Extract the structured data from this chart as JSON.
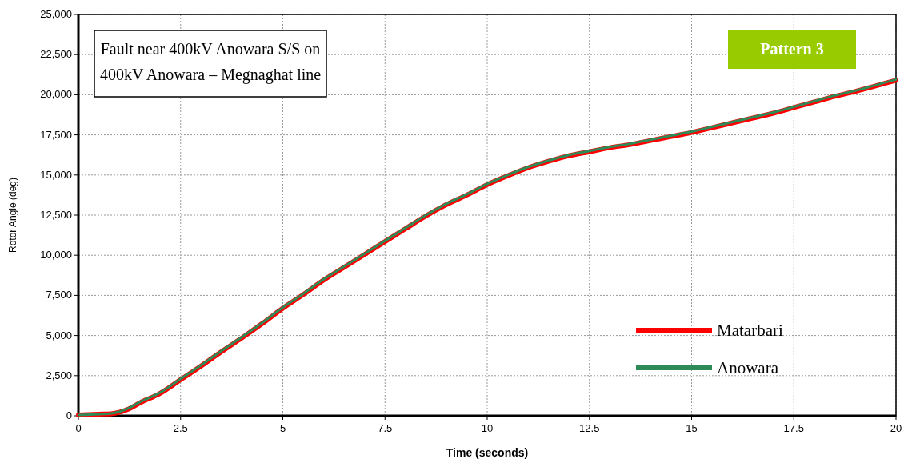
{
  "chart_data": {
    "type": "line",
    "xlabel": "Time (seconds)",
    "ylabel": "Rotor Angle (deg)",
    "annotations": [
      "Fault near 400kV Anowara S/S on 400kV Anowara – Megnaghat line",
      "Pattern 3"
    ],
    "x": [
      0,
      0.5,
      0.8,
      1,
      1.25,
      1.5,
      2,
      2.5,
      3,
      3.5,
      4,
      4.5,
      5,
      5.5,
      6,
      6.5,
      7,
      7.5,
      8,
      8.5,
      9,
      9.5,
      10,
      10.5,
      11,
      11.5,
      12,
      12.5,
      13,
      13.5,
      14,
      14.5,
      15,
      15.5,
      16,
      16.5,
      17,
      17.5,
      18,
      18.5,
      19,
      19.5,
      20
    ],
    "series": [
      {
        "name": "Matarbari",
        "color": "#ff0000",
        "values": [
          50,
          100,
          130,
          220,
          450,
          800,
          1400,
          2250,
          3100,
          4000,
          4850,
          5750,
          6700,
          7550,
          8450,
          9250,
          10050,
          10850,
          11650,
          12450,
          13150,
          13750,
          14400,
          14950,
          15450,
          15850,
          16200,
          16450,
          16700,
          16900,
          17150,
          17400,
          17650,
          17950,
          18250,
          18550,
          18850,
          19200,
          19550,
          19900,
          20200,
          20550,
          20900
        ]
      },
      {
        "name": "Anowara",
        "color": "#2e8b57",
        "values": [
          50,
          100,
          150,
          250,
          500,
          850,
          1450,
          2300,
          3150,
          4050,
          4900,
          5800,
          6750,
          7600,
          8500,
          9300,
          10100,
          10900,
          11700,
          12500,
          13200,
          13800,
          14450,
          15000,
          15500,
          15900,
          16250,
          16500,
          16750,
          16950,
          17200,
          17450,
          17700,
          18000,
          18300,
          18600,
          18900,
          19250,
          19600,
          19950,
          20250,
          20600,
          20950
        ]
      }
    ],
    "xlim": [
      0,
      20
    ],
    "xticks": [
      0,
      2.5,
      5,
      7.5,
      10,
      12.5,
      15,
      17.5,
      20
    ],
    "ylim": [
      0,
      25000
    ],
    "yticks": [
      0,
      {
        "value": 2500,
        "label": "2,500"
      },
      {
        "value": 5000,
        "label": "5,000"
      },
      {
        "value": 7500,
        "label": "7,500"
      },
      {
        "value": 10000,
        "label": "10,000"
      },
      {
        "value": 12500,
        "label": "12,500"
      },
      {
        "value": 15000,
        "label": "15,000"
      },
      {
        "value": 17500,
        "label": "17,500"
      },
      {
        "value": 20000,
        "label": "20,000"
      },
      {
        "value": 22500,
        "label": "22,500"
      },
      {
        "value": 25000,
        "label": "25,000"
      }
    ],
    "grid": true,
    "legend": "bottom right",
    "marker": "none",
    "line_style": "solid"
  }
}
